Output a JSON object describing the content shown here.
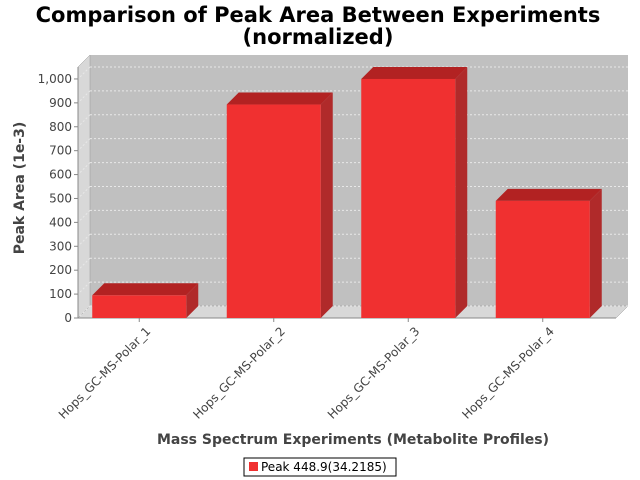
{
  "chart_data": {
    "type": "bar",
    "title": "Comparison of Peak Area Between Experiments",
    "subtitle": "(normalized)",
    "xlabel": "Mass Spectrum Experiments (Metabolite Profiles)",
    "ylabel": "Peak Area (1e-3)",
    "categories": [
      "Hops_GC-MS-Polar_1",
      "Hops_GC-MS-Polar_2",
      "Hops_GC-MS-Polar_3",
      "Hops_GC-MS-Polar_4"
    ],
    "series": [
      {
        "name": "Peak 448.9(34.2185)",
        "values": [
          95,
          893,
          1000,
          490
        ]
      }
    ],
    "ylim": [
      0,
      1050
    ],
    "yticks": [
      0,
      100,
      200,
      300,
      400,
      500,
      600,
      700,
      800,
      900,
      1000
    ],
    "ytick_labels": [
      "0",
      "100",
      "200",
      "300",
      "400",
      "500",
      "600",
      "700",
      "800",
      "900",
      "1,000"
    ],
    "grid": true,
    "legend_position": "bottom",
    "colors": {
      "bar_front": "#f03030",
      "bar_top": "#b22222",
      "bar_side": "#b02a2a",
      "plot_background": "#c0c0c0",
      "wall_side": "#d8d8d8"
    }
  }
}
